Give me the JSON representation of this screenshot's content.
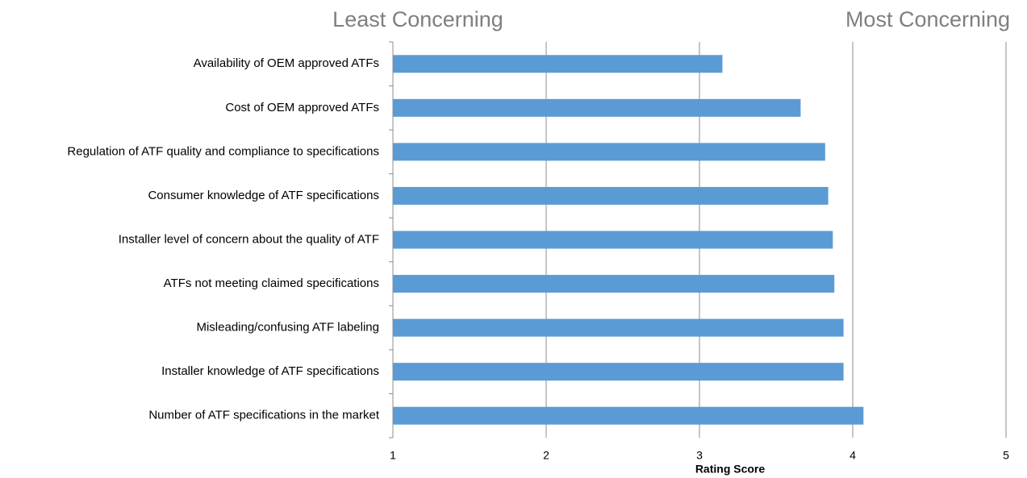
{
  "chart_data": {
    "type": "barh",
    "annotations": [
      "Least Concerning",
      "Most Concerning"
    ],
    "xlabel": "Rating Score",
    "categories": [
      "Availability of OEM approved ATFs",
      "Cost of OEM approved ATFs",
      "Regulation of ATF quality and compliance to specifications",
      "Consumer knowledge of ATF specifications",
      "Installer level of concern about the quality of ATF",
      "ATFs not meeting claimed specifications",
      "Misleading/confusing ATF labeling",
      "Installer knowledge of ATF specifications",
      "Number of ATF specifications in the market"
    ],
    "values": [
      3.15,
      3.66,
      3.82,
      3.84,
      3.87,
      3.88,
      3.94,
      3.94,
      4.07
    ],
    "color": "#5b9bd5",
    "xlim": [
      1,
      5
    ],
    "xticks": [
      1,
      2,
      3,
      4,
      5
    ],
    "grid": true
  }
}
